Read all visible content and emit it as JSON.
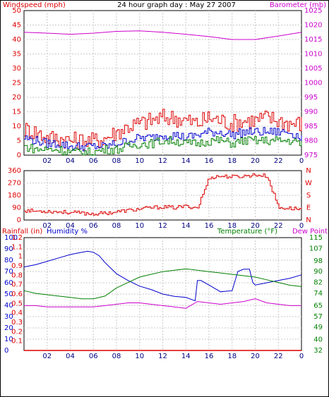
{
  "chart_data": [
    {
      "type": "line",
      "title": "24 hour graph day : May 27 2007",
      "ylabel": "Windspeed (mph)",
      "ylabel_right": "Barometer (mb)",
      "x_ticks": [
        "02",
        "04",
        "06",
        "08",
        "10",
        "12",
        "14",
        "16",
        "18",
        "20",
        "22",
        "0"
      ],
      "y_ticks": [
        0,
        5,
        10,
        15,
        20,
        25,
        30,
        35,
        40,
        45,
        50
      ],
      "ylim": [
        0,
        50
      ],
      "y_ticks_right": [
        975,
        980,
        985,
        990,
        995,
        1000,
        1005,
        1010,
        1015,
        1020,
        1025
      ],
      "ylim_right": [
        975,
        1025
      ],
      "grid": true,
      "series": [
        {
          "axis": "right",
          "color": "#cc00cc",
          "x": [
            0,
            2,
            4,
            6,
            8,
            10,
            12,
            14,
            16,
            18,
            20,
            22,
            24
          ],
          "values": [
            1017.5,
            1017.2,
            1016.8,
            1017.2,
            1017.8,
            1018.0,
            1017.5,
            1016.8,
            1016.0,
            1015.0,
            1015.0,
            1016.2,
            1017.5
          ]
        },
        {
          "axis": "left",
          "color": "#dd0000",
          "x": [
            0,
            1,
            2,
            3,
            4,
            5,
            6,
            7,
            8,
            9,
            10,
            11,
            12,
            13,
            14,
            15,
            16,
            17,
            18,
            19,
            20,
            21,
            22,
            23,
            24
          ],
          "values": [
            9,
            8,
            6,
            6,
            5,
            5,
            5,
            6,
            8,
            10,
            11,
            12,
            13,
            13,
            12,
            11,
            13,
            12,
            11,
            12,
            12,
            13,
            12,
            11,
            11
          ]
        },
        {
          "axis": "left",
          "color": "#0000cc",
          "x": [
            0,
            1,
            2,
            3,
            4,
            5,
            6,
            7,
            8,
            9,
            10,
            11,
            12,
            13,
            14,
            15,
            16,
            17,
            18,
            19,
            20,
            21,
            22,
            23,
            24
          ],
          "values": [
            6,
            5,
            4,
            4,
            3,
            3,
            3,
            3,
            4,
            5,
            6,
            6,
            7,
            7,
            6,
            7,
            8,
            8,
            7,
            8,
            8,
            8,
            8,
            8,
            6
          ]
        },
        {
          "axis": "left",
          "color": "#008000",
          "x": [
            0,
            1,
            2,
            3,
            4,
            5,
            6,
            7,
            8,
            9,
            10,
            11,
            12,
            13,
            14,
            15,
            16,
            17,
            18,
            19,
            20,
            21,
            22,
            23,
            24
          ],
          "values": [
            3,
            2,
            2,
            2,
            1,
            1,
            1,
            2,
            2,
            3,
            4,
            4,
            5,
            5,
            4,
            4,
            5,
            5,
            4,
            5,
            5,
            5,
            5,
            5,
            4
          ]
        }
      ]
    },
    {
      "type": "line",
      "ylabel": "",
      "y_ticks": [
        0,
        90,
        180,
        270,
        360
      ],
      "ylim": [
        0,
        360
      ],
      "right_labels": [
        "N",
        "W",
        "S",
        "E",
        "N"
      ],
      "grid": true,
      "series": [
        {
          "color": "#dd0000",
          "x": [
            0,
            1,
            2,
            3,
            4,
            5,
            6,
            7,
            8,
            9,
            10,
            11,
            12,
            13,
            14,
            14.8,
            15,
            16,
            17,
            18,
            19,
            19.5,
            19.6,
            20,
            21,
            22,
            23,
            24
          ],
          "values": [
            70,
            65,
            65,
            60,
            55,
            50,
            45,
            50,
            60,
            70,
            80,
            90,
            95,
            90,
            100,
            90,
            310,
            320,
            315,
            320,
            330,
            320,
            90,
            85,
            80,
            80,
            80,
            80
          ]
        }
      ]
    },
    {
      "type": "line",
      "ylabel": "Rainfall (in)",
      "ylabel_2": "Humidity %",
      "ylabel_right": "Temperature (°F)",
      "ylabel_right_2": "Dew Point",
      "y_ticks_humidity": [
        0,
        10,
        20,
        30,
        40,
        50,
        60,
        70,
        80,
        90,
        100
      ],
      "y_ticks_rain": [
        0,
        0.1,
        0.2,
        0.3,
        0.4,
        0.5,
        0.6,
        0.7,
        0.8,
        0.9,
        1,
        1.1,
        1.2
      ],
      "y_ticks_right": [
        32,
        40,
        49,
        57,
        65,
        74,
        82,
        90,
        98,
        107,
        115
      ],
      "ylim_humidity": [
        0,
        100
      ],
      "ylim_right": [
        32,
        115
      ],
      "grid": true,
      "series": [
        {
          "name": "Humidity %",
          "axis": "humidity",
          "color": "#0000cc",
          "x": [
            0,
            1,
            2,
            3,
            4,
            5,
            5.5,
            6,
            6.5,
            7,
            8,
            9,
            10,
            11,
            12,
            13,
            14,
            14.8,
            15,
            15.3,
            16,
            17,
            18,
            18.5,
            19,
            19.5,
            19.8,
            20,
            21,
            22,
            23,
            24
          ],
          "values": [
            74,
            76,
            79,
            82,
            85,
            87,
            88,
            87,
            84,
            78,
            68,
            62,
            57,
            54,
            50,
            48,
            47,
            44,
            62,
            62,
            58,
            52,
            53,
            70,
            72,
            72,
            60,
            58,
            60,
            62,
            64,
            67
          ]
        },
        {
          "name": "Temperature (°F)",
          "axis": "right",
          "color": "#008000",
          "x": [
            0,
            1,
            2,
            3,
            4,
            5,
            6,
            7,
            8,
            9,
            10,
            11,
            12,
            13,
            14,
            15,
            16,
            17,
            18,
            19,
            20,
            21,
            22,
            23,
            24
          ],
          "values": [
            76,
            74,
            73,
            72,
            71,
            70,
            70,
            72,
            78,
            82,
            86,
            88,
            90,
            91,
            92,
            91,
            90,
            89,
            88,
            87,
            86,
            84,
            82,
            80,
            79
          ]
        },
        {
          "name": "Dew Point",
          "axis": "right",
          "color": "#cc00cc",
          "x": [
            0,
            1,
            2,
            3,
            4,
            5,
            6,
            7,
            8,
            9,
            10,
            11,
            12,
            13,
            14,
            15,
            16,
            17,
            18,
            19,
            20,
            21,
            22,
            23,
            24
          ],
          "values": [
            65,
            65,
            64,
            64,
            64,
            64,
            64,
            65,
            66,
            67,
            67,
            66,
            65,
            64,
            63,
            68,
            67,
            66,
            67,
            68,
            70,
            67,
            66,
            65,
            65
          ]
        },
        {
          "name": "Rainfall (in)",
          "axis": "rain",
          "color": "#dd0000",
          "x": [
            0,
            24
          ],
          "values": [
            0,
            0
          ]
        }
      ]
    }
  ]
}
